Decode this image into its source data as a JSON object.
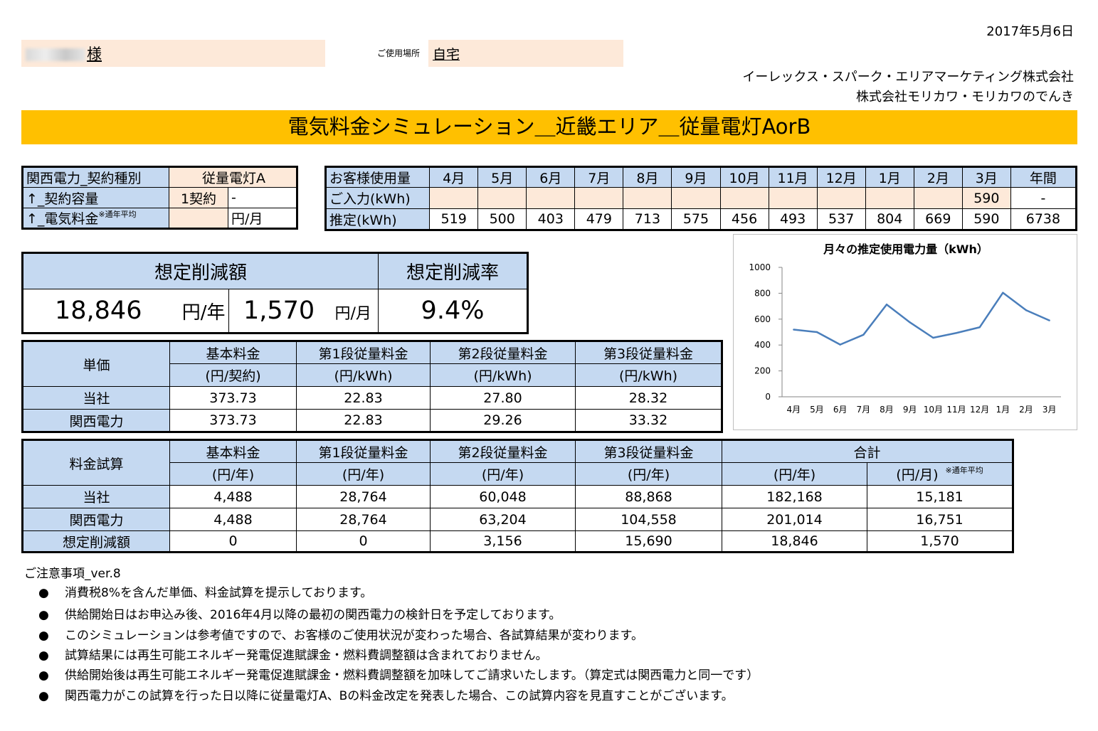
{
  "date": "2017年5月6日",
  "customer": {
    "suffix": "様"
  },
  "place": {
    "label": "ご使用場所",
    "value": "自宅"
  },
  "company": [
    "イーレックス・スパーク・エリアマーケティング株式会社",
    "株式会社モリカワ・モリカワのでんき"
  ],
  "title": "電気料金シミュレーション＿近畿エリア＿従量電灯AorB",
  "contract": {
    "rows": [
      {
        "label": "関西電力_契約種別",
        "value": "従量電灯A",
        "unit": ""
      },
      {
        "label": "↑_契約容量",
        "value": "1契約",
        "unit": "-"
      },
      {
        "label": "↑_電気料金",
        "note": "※通年平均",
        "value": "",
        "unit": "円/月"
      }
    ]
  },
  "usage": {
    "header_label": "お客様使用量",
    "months": [
      "4月",
      "5月",
      "6月",
      "7月",
      "8月",
      "9月",
      "10月",
      "11月",
      "12月",
      "1月",
      "2月",
      "3月",
      "年間"
    ],
    "input_label": "ご入力(kWh)",
    "input": [
      "",
      "",
      "",
      "",
      "",
      "",
      "",
      "",
      "",
      "",
      "",
      "590",
      "-"
    ],
    "estimate_label": "推定(kWh)",
    "estimate": [
      "519",
      "500",
      "403",
      "479",
      "713",
      "575",
      "456",
      "493",
      "537",
      "804",
      "669",
      "590",
      "6738"
    ]
  },
  "savings": {
    "amount_label": "想定削減額",
    "rate_label": "想定削減率",
    "year_value": "18,846",
    "year_unit": "円/年",
    "month_value": "1,570",
    "month_unit": "円/月",
    "rate": "9.4%"
  },
  "unit_price": {
    "header": "単価",
    "cols": [
      {
        "name": "基本料金",
        "unit": "(円/契約)"
      },
      {
        "name": "第1段従量料金",
        "unit": "(円/kWh)"
      },
      {
        "name": "第2段従量料金",
        "unit": "(円/kWh)"
      },
      {
        "name": "第3段従量料金",
        "unit": "(円/kWh)"
      }
    ],
    "rows": [
      {
        "label": "当社",
        "values": [
          "373.73",
          "22.83",
          "27.80",
          "28.32"
        ]
      },
      {
        "label": "関西電力",
        "values": [
          "373.73",
          "22.83",
          "29.26",
          "33.32"
        ]
      }
    ]
  },
  "fee_calc": {
    "header": "料金試算",
    "cols": [
      {
        "name": "基本料金",
        "unit": "(円/年)"
      },
      {
        "name": "第1段従量料金",
        "unit": "(円/年)"
      },
      {
        "name": "第2段従量料金",
        "unit": "(円/年)"
      },
      {
        "name": "第3段従量料金",
        "unit": "(円/年)"
      }
    ],
    "total_label": "合計",
    "total_year_unit": "(円/年)",
    "total_month_unit": "(円/月)",
    "total_note": "※通年平均",
    "rows": [
      {
        "label": "当社",
        "values": [
          "4,488",
          "28,764",
          "60,048",
          "88,868",
          "182,168",
          "15,181"
        ]
      },
      {
        "label": "関西電力",
        "values": [
          "4,488",
          "28,764",
          "63,204",
          "104,558",
          "201,014",
          "16,751"
        ]
      },
      {
        "label": "想定削減額",
        "values": [
          "0",
          "0",
          "3,156",
          "15,690",
          "18,846",
          "1,570"
        ]
      }
    ]
  },
  "chart_data": {
    "type": "line",
    "title": "月々の推定使用電力量（kWh）",
    "categories": [
      "4月",
      "5月",
      "6月",
      "7月",
      "8月",
      "9月",
      "10月",
      "11月",
      "12月",
      "1月",
      "2月",
      "3月"
    ],
    "series": [
      {
        "values": [
          519,
          500,
          403,
          479,
          713,
          575,
          456,
          493,
          537,
          804,
          669,
          590
        ]
      }
    ],
    "ylim": [
      0,
      1000
    ],
    "yticks": [
      0,
      200,
      400,
      600,
      800,
      1000
    ],
    "grid": false,
    "line_color": "#4a7ebb"
  },
  "notes": {
    "title": "ご注意事項_ver.8",
    "bullet": "●",
    "items": [
      "消費税8%を含んだ単価、料金試算を提示しております。",
      "供給開始日はお申込み後、2016年4月以降の最初の関西電力の検針日を予定しております。",
      "このシミュレーションは参考値ですので、お客様のご使用状況が変わった場合、各試算結果が変わります。",
      "試算結果には再生可能エネルギー発電促進賦課金・燃料費調整額は含まれておりません。",
      "供給開始後は再生可能エネルギー発電促進賦課金・燃料費調整額を加味してご請求いたします。（算定式は関西電力と同一です）",
      "関西電力がこの試算を行った日以降に従量電灯A、Bの料金改定を発表した場合、この試算内容を見直すことがございます。"
    ]
  }
}
